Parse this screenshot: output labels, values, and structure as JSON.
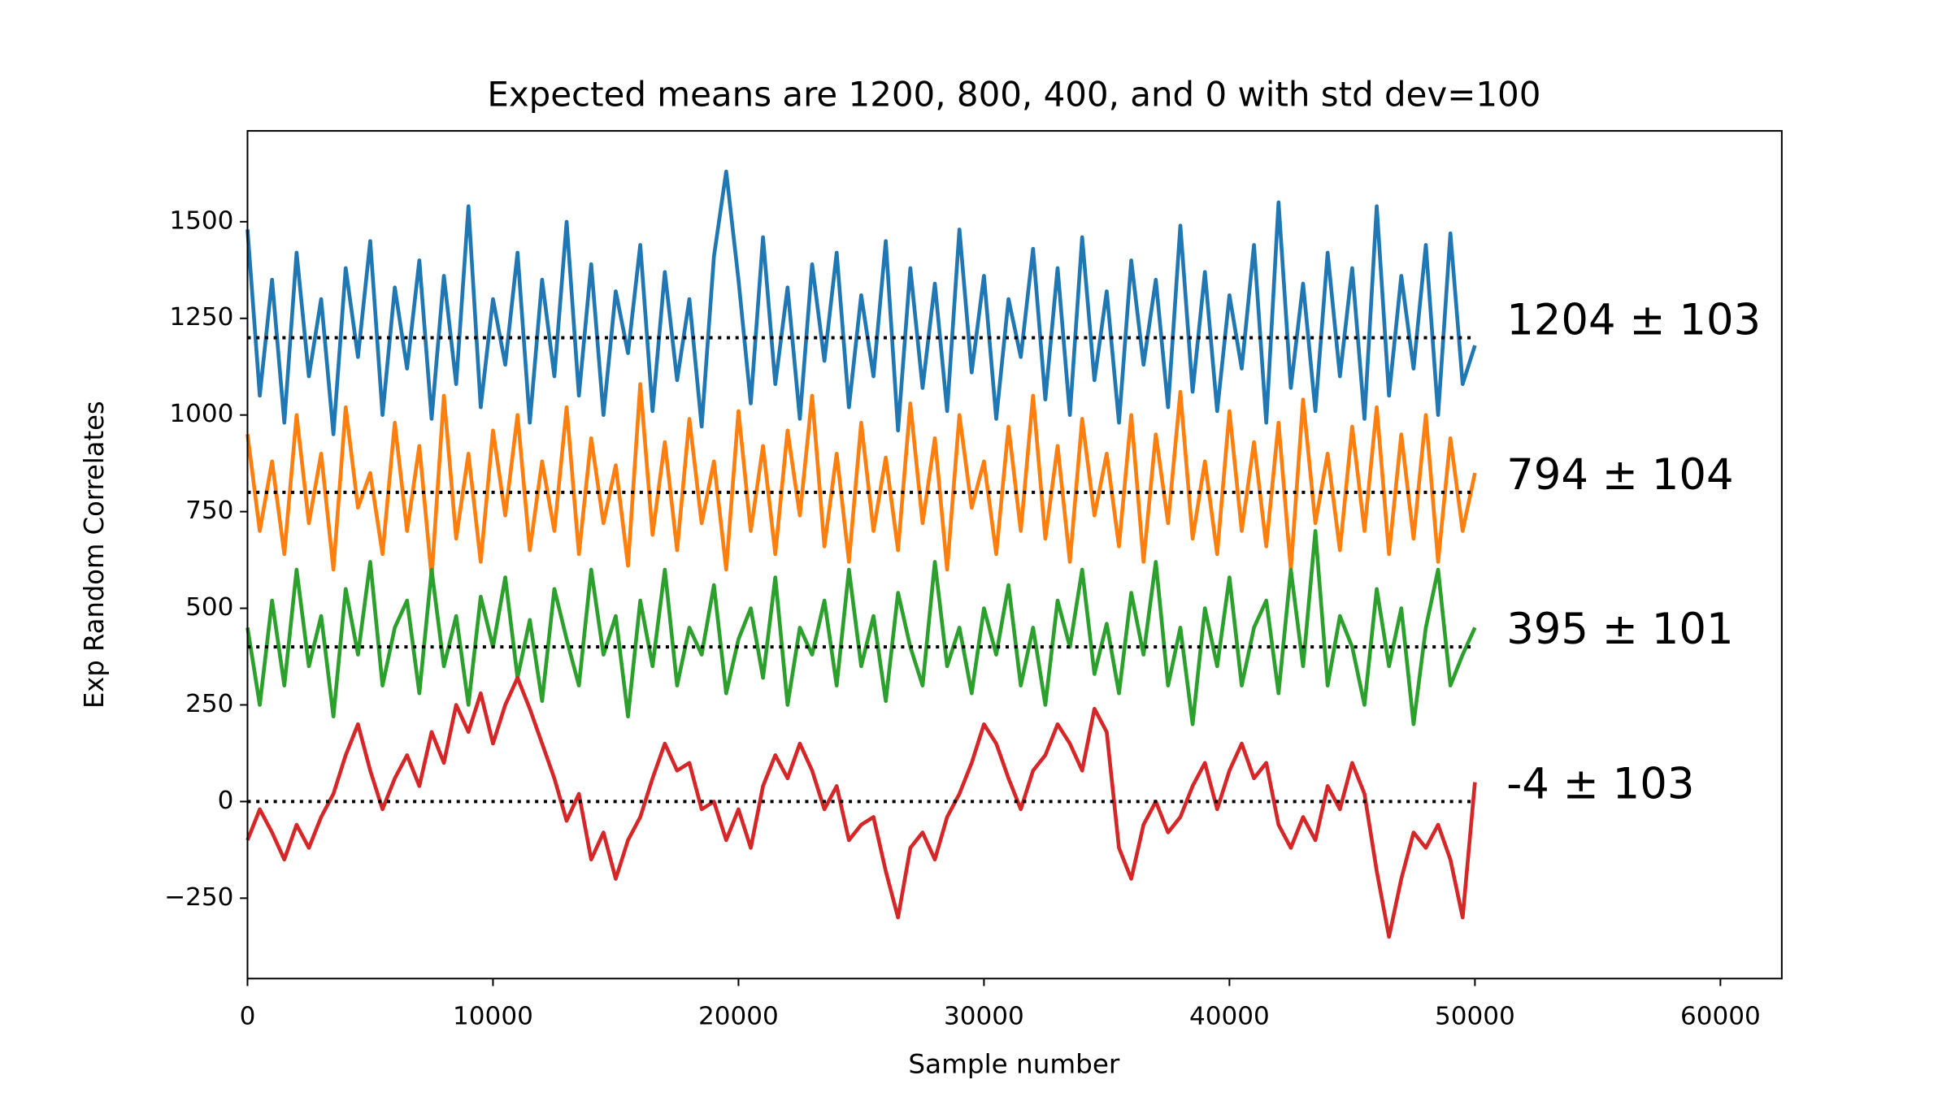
{
  "chart_data": {
    "type": "line",
    "title": "Expected means are 1200, 800, 400, and 0 with std dev=100",
    "xlabel": "Sample number",
    "ylabel": "Exp Random Correlates",
    "x": [
      0,
      500,
      1000,
      1500,
      2000,
      2500,
      3000,
      3500,
      4000,
      4500,
      5000,
      5500,
      6000,
      6500,
      7000,
      7500,
      8000,
      8500,
      9000,
      9500,
      10000,
      10500,
      11000,
      11500,
      12000,
      12500,
      13000,
      13500,
      14000,
      14500,
      15000,
      15500,
      16000,
      16500,
      17000,
      17500,
      18000,
      18500,
      19000,
      19500,
      20000,
      20500,
      21000,
      21500,
      22000,
      22500,
      23000,
      23500,
      24000,
      24500,
      25000,
      25500,
      26000,
      26500,
      27000,
      27500,
      28000,
      28500,
      29000,
      29500,
      30000,
      30500,
      31000,
      31500,
      32000,
      32500,
      33000,
      33500,
      34000,
      34500,
      35000,
      35500,
      36000,
      36500,
      37000,
      37500,
      38000,
      38500,
      39000,
      39500,
      40000,
      40500,
      41000,
      41500,
      42000,
      42500,
      43000,
      43500,
      44000,
      44500,
      45000,
      45500,
      46000,
      46500,
      47000,
      47500,
      48000,
      48500,
      49000,
      49500,
      50000
    ],
    "series": [
      {
        "color": "#1f77b4",
        "values": [
          1480,
          1050,
          1350,
          980,
          1420,
          1100,
          1300,
          950,
          1380,
          1150,
          1450,
          1000,
          1330,
          1120,
          1400,
          990,
          1360,
          1080,
          1540,
          1020,
          1300,
          1130,
          1420,
          980,
          1350,
          1100,
          1500,
          1050,
          1390,
          1000,
          1320,
          1160,
          1440,
          1010,
          1370,
          1090,
          1300,
          970,
          1410,
          1630,
          1350,
          1030,
          1460,
          1080,
          1330,
          990,
          1390,
          1140,
          1420,
          1020,
          1310,
          1100,
          1450,
          960,
          1380,
          1070,
          1340,
          1010,
          1480,
          1110,
          1360,
          990,
          1300,
          1150,
          1430,
          1040,
          1380,
          1000,
          1460,
          1090,
          1320,
          980,
          1400,
          1130,
          1350,
          1020,
          1490,
          1060,
          1370,
          1010,
          1310,
          1120,
          1440,
          980,
          1550,
          1070,
          1340,
          1010,
          1420,
          1100,
          1380,
          990,
          1540,
          1050,
          1360,
          1120,
          1440,
          1000,
          1470,
          1080,
          1180
        ]
      },
      {
        "color": "#ff7f0e",
        "values": [
          950,
          700,
          880,
          640,
          1000,
          720,
          900,
          600,
          1020,
          760,
          850,
          640,
          980,
          700,
          920,
          580,
          1050,
          680,
          900,
          620,
          960,
          740,
          1000,
          650,
          880,
          700,
          1020,
          640,
          940,
          720,
          870,
          610,
          1080,
          690,
          930,
          650,
          990,
          720,
          880,
          600,
          1010,
          700,
          920,
          640,
          960,
          740,
          1050,
          660,
          900,
          620,
          980,
          700,
          890,
          650,
          1030,
          720,
          940,
          600,
          1000,
          760,
          880,
          640,
          970,
          700,
          1050,
          680,
          920,
          620,
          990,
          740,
          900,
          660,
          1000,
          620,
          950,
          720,
          1060,
          680,
          880,
          640,
          1010,
          700,
          930,
          660,
          980,
          600,
          1040,
          720,
          900,
          650,
          970,
          700,
          1020,
          640,
          950,
          680,
          1000,
          620,
          940,
          700,
          850
        ]
      },
      {
        "color": "#2ca02c",
        "values": [
          450,
          250,
          520,
          300,
          600,
          350,
          480,
          220,
          550,
          380,
          620,
          300,
          450,
          520,
          280,
          600,
          350,
          480,
          250,
          530,
          400,
          580,
          320,
          470,
          260,
          550,
          420,
          300,
          600,
          380,
          480,
          220,
          520,
          350,
          600,
          300,
          450,
          380,
          560,
          280,
          420,
          500,
          320,
          580,
          250,
          450,
          380,
          520,
          300,
          600,
          350,
          480,
          260,
          540,
          400,
          300,
          620,
          350,
          450,
          280,
          500,
          380,
          560,
          300,
          450,
          250,
          520,
          400,
          600,
          330,
          460,
          280,
          540,
          380,
          620,
          300,
          450,
          200,
          500,
          350,
          580,
          300,
          450,
          520,
          280,
          600,
          350,
          700,
          300,
          480,
          400,
          250,
          550,
          350,
          500,
          200,
          450,
          600,
          300,
          380,
          450
        ]
      },
      {
        "color": "#d62728",
        "values": [
          -100,
          -20,
          -80,
          -150,
          -60,
          -120,
          -40,
          20,
          120,
          200,
          80,
          -20,
          60,
          120,
          40,
          180,
          100,
          250,
          180,
          280,
          150,
          250,
          320,
          240,
          150,
          60,
          -50,
          20,
          -150,
          -80,
          -200,
          -100,
          -40,
          60,
          150,
          80,
          100,
          -20,
          0,
          -100,
          -20,
          -120,
          40,
          120,
          60,
          150,
          80,
          -20,
          40,
          -100,
          -60,
          -40,
          -180,
          -300,
          -120,
          -80,
          -150,
          -40,
          20,
          100,
          200,
          150,
          60,
          -20,
          80,
          120,
          200,
          150,
          80,
          240,
          180,
          -120,
          -200,
          -60,
          0,
          -80,
          -40,
          40,
          100,
          -20,
          80,
          150,
          60,
          100,
          -60,
          -120,
          -40,
          -100,
          40,
          -20,
          100,
          20,
          -180,
          -350,
          -200,
          -80,
          -120,
          -60,
          -150,
          -300,
          50
        ]
      }
    ],
    "reference_lines": [
      1200,
      800,
      400,
      0
    ],
    "reference_color": "#000000",
    "annotations": [
      "1204 ± 103",
      "794 ± 104",
      "395 ± 101",
      "-4 ± 103"
    ],
    "xlim": [
      0,
      62500
    ],
    "ylim": [
      -458,
      1735
    ],
    "xticks": [
      0,
      10000,
      20000,
      30000,
      40000,
      50000,
      60000
    ],
    "yticks": [
      {
        "value": -250,
        "label": "−250"
      },
      0,
      250,
      500,
      750,
      1000,
      1250,
      1500
    ],
    "grid": false
  }
}
